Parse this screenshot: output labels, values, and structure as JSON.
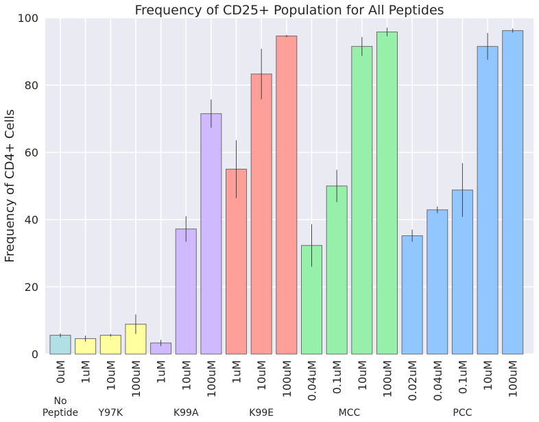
{
  "chart_data": {
    "type": "bar",
    "title": "Frequency of CD25+ Population for All Peptides",
    "xlabel": "",
    "ylabel": "Frequency of CD4+ Cells",
    "ylim": [
      0,
      100
    ],
    "yticks": [
      0,
      20,
      40,
      60,
      80,
      100
    ],
    "grid": true,
    "background": "#eaeaf2",
    "categories": [
      "0uM",
      "1uM",
      "10uM",
      "100uM",
      "1uM",
      "10uM",
      "100uM",
      "1uM",
      "10uM",
      "100uM",
      "0.04uM",
      "0.1uM",
      "10uM",
      "100uM",
      "0.02uM",
      "0.04uM",
      "0.1uM",
      "10uM",
      "100uM"
    ],
    "values": [
      5.6,
      4.6,
      5.6,
      8.9,
      3.3,
      37.2,
      71.5,
      55.0,
      83.3,
      94.6,
      32.3,
      50.0,
      91.5,
      95.8,
      35.2,
      42.9,
      48.8,
      91.5,
      96.2
    ],
    "errors": [
      0.6,
      0.9,
      0.4,
      2.9,
      0.9,
      3.8,
      4.2,
      8.6,
      7.5,
      0.3,
      6.3,
      4.8,
      2.8,
      1.3,
      1.8,
      1.0,
      8.0,
      4.0,
      0.6
    ],
    "groups": [
      {
        "label": "No\nPeptide",
        "label_lines": [
          "No",
          "Peptide"
        ],
        "count": 1,
        "color": "#b0e0e6"
      },
      {
        "label": "Y97K",
        "label_lines": [
          "Y97K"
        ],
        "count": 3,
        "color": "#ffff9f"
      },
      {
        "label": "K99A",
        "label_lines": [
          "K99A"
        ],
        "count": 3,
        "color": "#cfbaff"
      },
      {
        "label": "K99E",
        "label_lines": [
          "K99E"
        ],
        "count": 3,
        "color": "#ff9f9a"
      },
      {
        "label": "MCC",
        "label_lines": [
          "MCC"
        ],
        "count": 4,
        "color": "#97f0aa"
      },
      {
        "label": "PCC",
        "label_lines": [
          "PCC"
        ],
        "count": 5,
        "color": "#92c6ff"
      }
    ]
  }
}
